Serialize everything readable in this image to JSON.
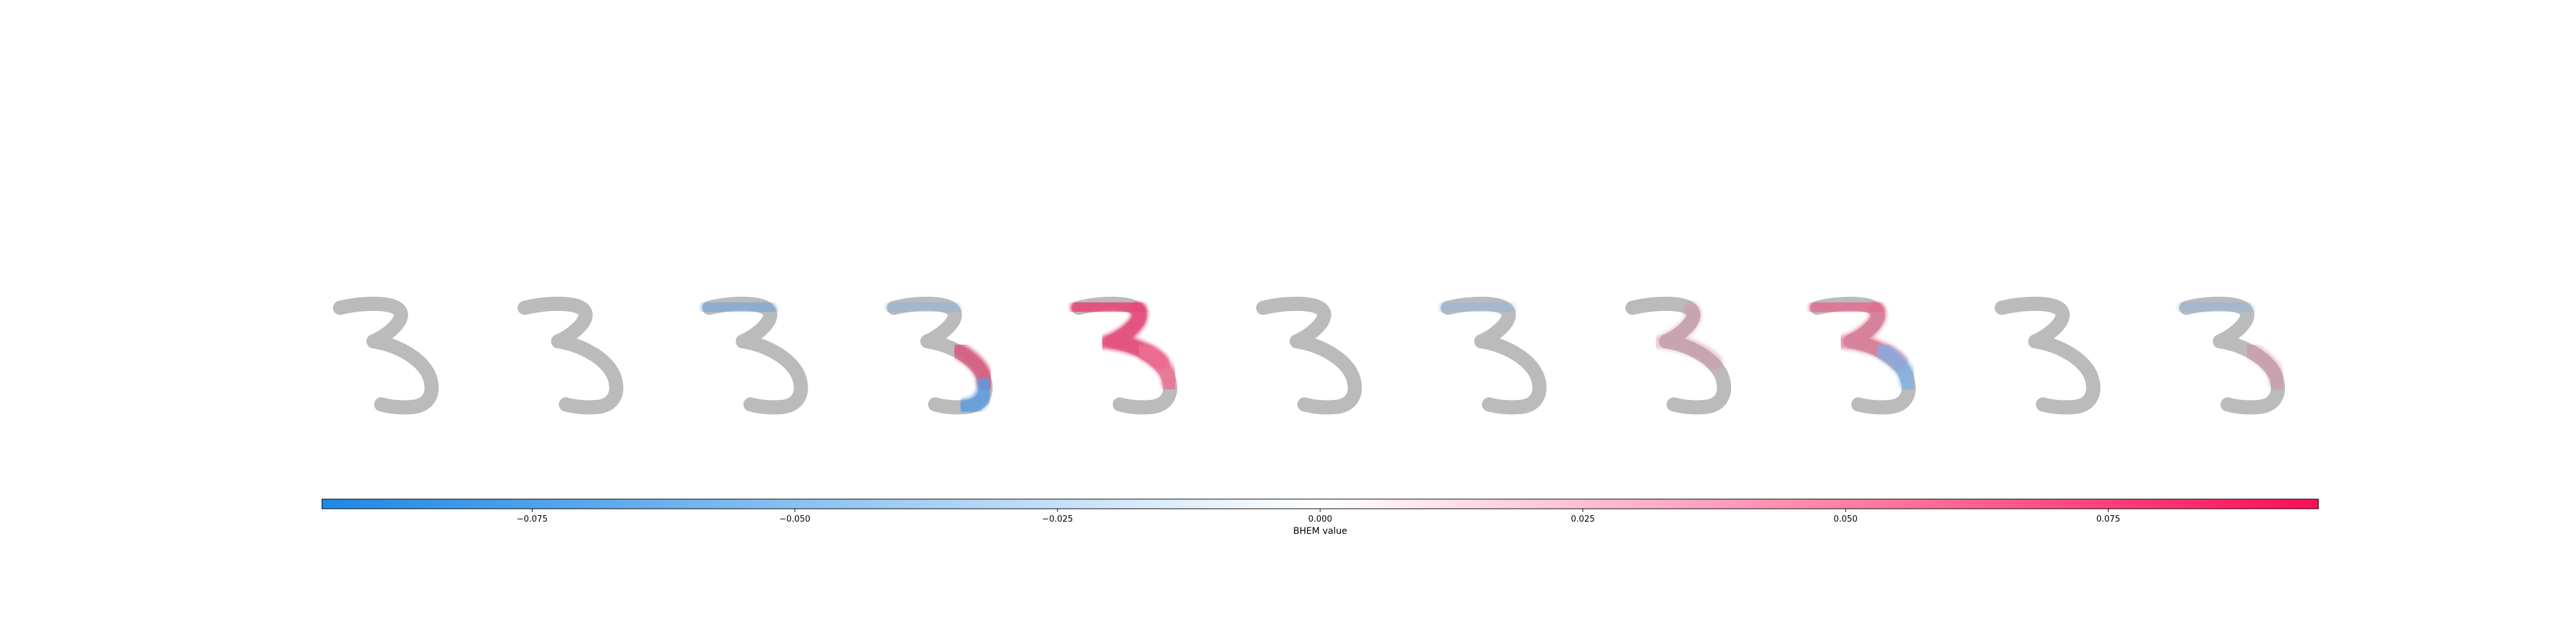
{
  "chart_data": {
    "type": "heatmap",
    "description_of_panels": "11 SHAP-style explanation images of handwritten digit 3; first is the original, the rest are per-class attributions",
    "panels": [
      {
        "overlay": "none"
      },
      {
        "overlay": "none"
      },
      {
        "overlay": "top-blue-faint"
      },
      {
        "overlay": "right-mixed"
      },
      {
        "overlay": "strong-red"
      },
      {
        "overlay": "none"
      },
      {
        "overlay": "faint-blue"
      },
      {
        "overlay": "faint-red"
      },
      {
        "overlay": "red-top-blue-right"
      },
      {
        "overlay": "none"
      },
      {
        "overlay": "faint-mixed"
      }
    ],
    "colorbar": {
      "label": "BHEM value",
      "min": -0.095,
      "max": 0.095,
      "ticks": [
        -0.075,
        -0.05,
        -0.025,
        0.0,
        0.025,
        0.05,
        0.075
      ],
      "tick_labels": [
        "−0.075",
        "−0.050",
        "−0.025",
        "0.000",
        "0.025",
        "0.050",
        "0.075"
      ],
      "color_negative": "#1e88e5",
      "color_zero": "#ffffff",
      "color_positive": "#ff0d57"
    },
    "digit_color": "#b4b4b4"
  }
}
